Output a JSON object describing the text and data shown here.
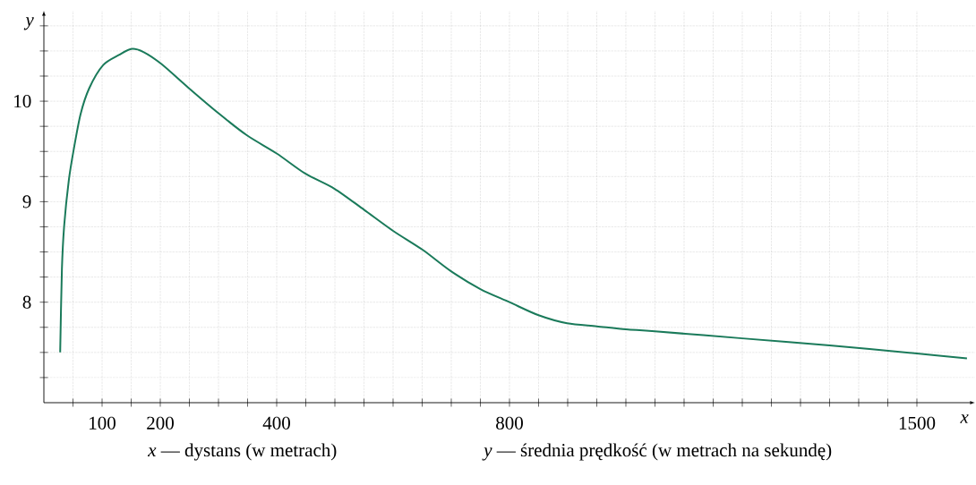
{
  "chart_data": {
    "type": "line",
    "xlabel": "x",
    "ylabel": "y",
    "annotations": [
      "*x* — dystans (w metrach)",
      "*y* — średnia prędkość (w metrach na sekundę)"
    ],
    "x": [
      28,
      31,
      35,
      43,
      51,
      63,
      78,
      102,
      129,
      150,
      171,
      202,
      249,
      300,
      349,
      400,
      449,
      499,
      550,
      600,
      651,
      699,
      750,
      800,
      850,
      899,
      950,
      1000,
      1050,
      1200,
      1350,
      1500,
      1586
    ],
    "series": [
      {
        "color": "#1a7a5a",
        "values": [
          7.5,
          8.33,
          8.77,
          9.22,
          9.51,
          9.87,
          10.13,
          10.36,
          10.46,
          10.52,
          10.49,
          10.37,
          10.13,
          9.88,
          9.66,
          9.48,
          9.28,
          9.13,
          8.92,
          8.71,
          8.52,
          8.31,
          8.13,
          8.0,
          7.87,
          7.79,
          7.76,
          7.73,
          7.71,
          7.64,
          7.57,
          7.49,
          7.44
        ]
      }
    ],
    "xlim": [
      0,
      1600
    ],
    "ylim": [
      7,
      10.9
    ],
    "xticks": [
      {
        "value": 50,
        "label": null
      },
      100,
      200,
      {
        "value": 150,
        "label": null
      },
      {
        "value": 250,
        "label": null
      },
      {
        "value": 300,
        "label": null
      },
      {
        "value": 350,
        "label": null
      },
      400,
      {
        "value": 450,
        "label": null
      },
      {
        "value": 500,
        "label": null
      },
      {
        "value": 550,
        "label": null
      },
      {
        "value": 600,
        "label": null
      },
      {
        "value": 650,
        "label": null
      },
      {
        "value": 700,
        "label": null
      },
      {
        "value": 750,
        "label": null
      },
      800,
      {
        "value": 850,
        "label": null
      },
      {
        "value": 900,
        "label": null
      },
      {
        "value": 950,
        "label": null
      },
      {
        "value": 1000,
        "label": null
      },
      {
        "value": 1050,
        "label": null
      },
      {
        "value": 1100,
        "label": null
      },
      {
        "value": 1150,
        "label": null
      },
      {
        "value": 1200,
        "label": null
      },
      {
        "value": 1250,
        "label": null
      },
      {
        "value": 1300,
        "label": null
      },
      {
        "value": 1350,
        "label": null
      },
      {
        "value": 1400,
        "label": null
      },
      {
        "value": 1450,
        "label": null
      },
      1500
    ],
    "yticks": [
      {
        "value": 7.25,
        "label": null
      },
      {
        "value": 7.5,
        "label": null
      },
      {
        "value": 7.75,
        "label": null
      },
      8,
      {
        "value": 8.25,
        "label": null
      },
      {
        "value": 8.5,
        "label": null
      },
      {
        "value": 8.75,
        "label": null
      },
      9,
      {
        "value": 9.25,
        "label": null
      },
      {
        "value": 9.5,
        "label": null
      },
      {
        "value": 9.75,
        "label": null
      },
      10,
      {
        "value": 10.25,
        "label": null
      },
      {
        "value": 10.5,
        "label": null
      },
      {
        "value": 10.75,
        "label": null
      }
    ],
    "grid": true,
    "marker": "none",
    "line_style": "solid"
  }
}
